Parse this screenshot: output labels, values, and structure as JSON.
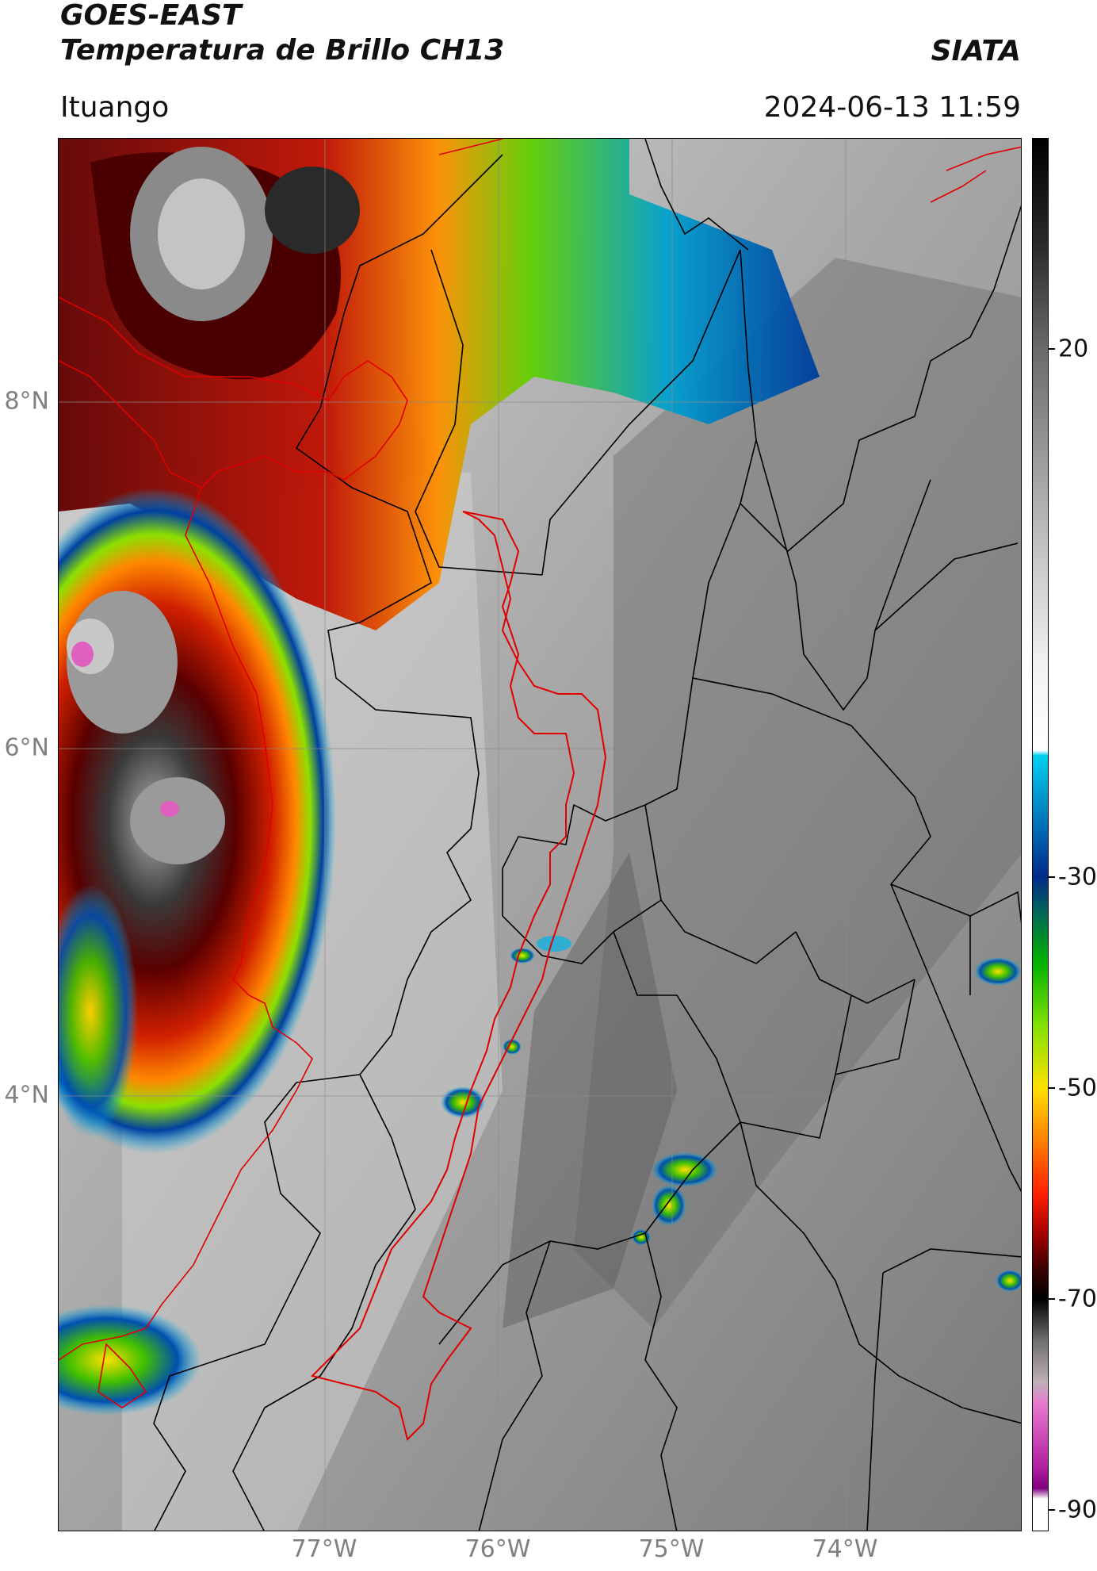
{
  "header": {
    "satellite": "GOES-EAST",
    "product": "Temperatura de Brillo CH13",
    "agency": "SIATA",
    "region": "Ituango",
    "datetime": "2024-06-13 11:59"
  },
  "map": {
    "lat_ticks": [
      {
        "value": 8,
        "label": "8°N"
      },
      {
        "value": 6,
        "label": "6°N"
      },
      {
        "value": 4,
        "label": "4°N"
      }
    ],
    "lon_ticks": [
      {
        "value": -77,
        "label": "77°W"
      },
      {
        "value": -76,
        "label": "76°W"
      },
      {
        "value": -75,
        "label": "75°W"
      },
      {
        "value": -74,
        "label": "74°W"
      }
    ],
    "colors": {
      "background_warm": "#8a8a8a",
      "borders": "#000000",
      "basin_outline": "#e00000",
      "coastline": "#e00000"
    }
  },
  "colorbar": {
    "unit_hint": "°C",
    "ticks": [
      {
        "value": 20,
        "label": "20"
      },
      {
        "value": -30,
        "label": "-30"
      },
      {
        "value": -50,
        "label": "-50"
      },
      {
        "value": -70,
        "label": "-70"
      },
      {
        "value": -90,
        "label": "-90"
      }
    ],
    "range": [
      -92,
      40
    ]
  }
}
